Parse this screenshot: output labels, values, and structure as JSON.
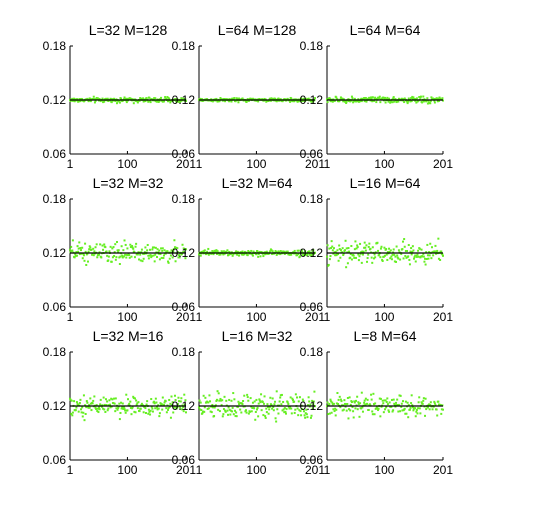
{
  "chart_data": [
    {
      "type": "scatter",
      "title": "L=32 M=128",
      "x_ticks": [
        "1",
        "100",
        "201"
      ],
      "y_ticks": [
        "0.06",
        "0.12",
        "0.18"
      ],
      "xlim": [
        1,
        201
      ],
      "ylim": [
        0.06,
        0.18
      ],
      "reference_line": 0.12,
      "point_color": "#66ee22",
      "line_color": "#000000",
      "n_points": 201,
      "y_mean": 0.12,
      "y_spread": 0.002
    },
    {
      "type": "scatter",
      "title": "L=64 M=128",
      "x_ticks": [
        "1",
        "100",
        "201"
      ],
      "y_ticks": [
        "0.06",
        "0.12",
        "0.18"
      ],
      "xlim": [
        1,
        201
      ],
      "ylim": [
        0.06,
        0.18
      ],
      "reference_line": 0.12,
      "point_color": "#66ee22",
      "line_color": "#000000",
      "n_points": 201,
      "y_mean": 0.12,
      "y_spread": 0.0015
    },
    {
      "type": "scatter",
      "title": "L=64 M=64",
      "x_ticks": [
        "1",
        "100",
        "201"
      ],
      "y_ticks": [
        "0.06",
        "0.12",
        "0.18"
      ],
      "xlim": [
        1,
        201
      ],
      "ylim": [
        0.06,
        0.18
      ],
      "reference_line": 0.12,
      "point_color": "#66ee22",
      "line_color": "#000000",
      "n_points": 201,
      "y_mean": 0.12,
      "y_spread": 0.0025
    },
    {
      "type": "scatter",
      "title": "L=32 M=32",
      "x_ticks": [
        "1",
        "100",
        "201"
      ],
      "y_ticks": [
        "0.06",
        "0.12",
        "0.18"
      ],
      "xlim": [
        1,
        201
      ],
      "ylim": [
        0.06,
        0.18
      ],
      "reference_line": 0.12,
      "point_color": "#66ee22",
      "line_color": "#000000",
      "n_points": 201,
      "y_mean": 0.12,
      "y_spread": 0.008
    },
    {
      "type": "scatter",
      "title": "L=32 M=64",
      "x_ticks": [
        "1",
        "100",
        "201"
      ],
      "y_ticks": [
        "0.06",
        "0.12",
        "0.18"
      ],
      "xlim": [
        1,
        201
      ],
      "ylim": [
        0.06,
        0.18
      ],
      "reference_line": 0.12,
      "point_color": "#66ee22",
      "line_color": "#000000",
      "n_points": 201,
      "y_mean": 0.12,
      "y_spread": 0.0025
    },
    {
      "type": "scatter",
      "title": "L=16 M=64",
      "x_ticks": [
        "1",
        "100",
        "201"
      ],
      "y_ticks": [
        "0.06",
        "0.12",
        "0.18"
      ],
      "xlim": [
        1,
        201
      ],
      "ylim": [
        0.06,
        0.18
      ],
      "reference_line": 0.12,
      "point_color": "#66ee22",
      "line_color": "#000000",
      "n_points": 201,
      "y_mean": 0.12,
      "y_spread": 0.009
    },
    {
      "type": "scatter",
      "title": "L=32 M=16",
      "x_ticks": [
        "1",
        "100",
        "201"
      ],
      "y_ticks": [
        "0.06",
        "0.12",
        "0.18"
      ],
      "xlim": [
        1,
        201
      ],
      "ylim": [
        0.06,
        0.18
      ],
      "reference_line": 0.12,
      "point_color": "#66ee22",
      "line_color": "#000000",
      "n_points": 201,
      "y_mean": 0.12,
      "y_spread": 0.009
    },
    {
      "type": "scatter",
      "title": "L=16 M=32",
      "x_ticks": [
        "1",
        "100",
        "201"
      ],
      "y_ticks": [
        "0.06",
        "0.12",
        "0.18"
      ],
      "xlim": [
        1,
        201
      ],
      "ylim": [
        0.06,
        0.18
      ],
      "reference_line": 0.12,
      "point_color": "#66ee22",
      "line_color": "#000000",
      "n_points": 201,
      "y_mean": 0.12,
      "y_spread": 0.01
    },
    {
      "type": "scatter",
      "title": "L=8 M=64",
      "x_ticks": [
        "1",
        "100",
        "201"
      ],
      "y_ticks": [
        "0.06",
        "0.12",
        "0.18"
      ],
      "xlim": [
        1,
        201
      ],
      "ylim": [
        0.06,
        0.18
      ],
      "reference_line": 0.12,
      "point_color": "#66ee22",
      "line_color": "#000000",
      "n_points": 201,
      "y_mean": 0.12,
      "y_spread": 0.009
    }
  ]
}
